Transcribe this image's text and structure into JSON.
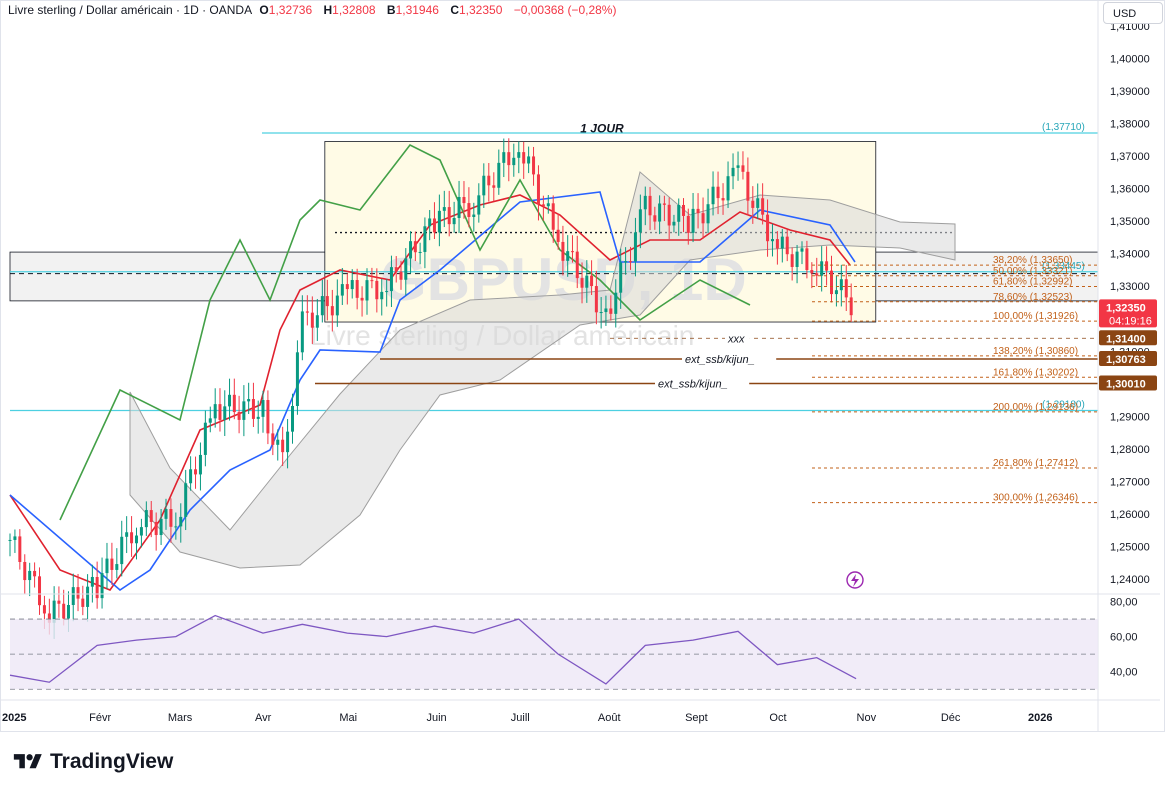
{
  "header": {
    "symbol": "Livre sterling / Dollar américain · 1D · OANDA",
    "o_label": "O",
    "o_value": "1,32736",
    "h_label": "H",
    "h_value": "1,32808",
    "b_label": "B",
    "b_value": "1,31946",
    "c_label": "C",
    "c_value": "1,32350",
    "change": "−0,00368 (−0,28%)"
  },
  "currency_button": "USD",
  "brand": "TradingView",
  "colors": {
    "up": "#089981",
    "down": "#f23645",
    "tenkan": "#e0222f",
    "kijun": "#2962ff",
    "chikou": "#43a047",
    "cloud": "#d9d9d9",
    "rsi": "#7e57c2",
    "fib": "#c2611a",
    "cyan": "#4dd0e1"
  },
  "chart_data": {
    "type": "candlestick",
    "title": "1 JOUR",
    "watermark_symbol": "GBPUSD, 1D",
    "watermark_name": "Livre sterling / Dollar américain",
    "y_axis": {
      "ticks": [
        "1,41000",
        "1,40000",
        "1,39000",
        "1,38000",
        "1,37000",
        "1,36000",
        "1,35000",
        "1,34000",
        "1,33000",
        "1,32000",
        "1,31000",
        "1,30000",
        "1,29000",
        "1,28000",
        "1,27000",
        "1,26000",
        "1,25000",
        "1,24000"
      ],
      "range": [
        1.236,
        1.418
      ]
    },
    "x_axis": {
      "ticks": [
        "2025",
        "Févr",
        "Mars",
        "Avr",
        "Mai",
        "Juin",
        "Juill",
        "Août",
        "Sept",
        "Oct",
        "Nov",
        "Déc",
        "2026"
      ]
    },
    "price_tags": [
      {
        "label": "1,32350",
        "sub": "04:19:16",
        "value": 1.3235,
        "color": "#f23645"
      },
      {
        "label": "1,31400",
        "value": 1.314,
        "color": "#8b4513"
      },
      {
        "label": "1,30763",
        "value": 1.30763,
        "color": "#8b4513"
      },
      {
        "label": "1,30010",
        "value": 1.3001,
        "color": "#8b4513"
      }
    ],
    "horizontal_levels": [
      {
        "label": "(1,37710)",
        "value": 1.3771,
        "style": "cyan"
      },
      {
        "label": "(1,33445)",
        "value": 1.33445,
        "style": "cyan"
      },
      {
        "label": "(1,29180)",
        "value": 1.2918,
        "style": "cyan"
      }
    ],
    "annotations": [
      {
        "label": "xxx",
        "value": 1.314
      },
      {
        "label": "ext_ssb/kijun_",
        "value": 1.30763
      },
      {
        "label": "ext_ssb/kijun_",
        "value": 1.3001
      }
    ],
    "fib_levels": [
      {
        "label": "38,20% (1,33650)",
        "value": 1.3365
      },
      {
        "label": "50,00% (1,33321)",
        "value": 1.33321
      },
      {
        "label": "61,80% (1,32992)",
        "value": 1.32992
      },
      {
        "label": "78,60% (1,32523)",
        "value": 1.32523
      },
      {
        "label": "100,00% (1,31926)",
        "value": 1.31926
      },
      {
        "label": "138,20% (1,30860)",
        "value": 1.3086
      },
      {
        "label": "161,80% (1,30202)",
        "value": 1.30202
      },
      {
        "label": "200,00% (1,29136)",
        "value": 1.29136
      },
      {
        "label": "261,80% (1,27412)",
        "value": 1.27412
      },
      {
        "label": "300,00% (1,26346)",
        "value": 1.26346
      }
    ],
    "range_box": {
      "top": 1.3745,
      "bottom": 1.319,
      "from": "2025-04-23",
      "to": "2025-11-05"
    },
    "close_series": [
      {
        "x": "2025-01-01",
        "y": 1.252
      },
      {
        "x": "2025-01-15",
        "y": 1.229
      },
      {
        "x": "2025-02-01",
        "y": 1.238
      },
      {
        "x": "2025-02-15",
        "y": 1.257
      },
      {
        "x": "2025-03-01",
        "y": 1.258
      },
      {
        "x": "2025-03-15",
        "y": 1.293
      },
      {
        "x": "2025-04-01",
        "y": 1.292
      },
      {
        "x": "2025-04-08",
        "y": 1.275
      },
      {
        "x": "2025-04-15",
        "y": 1.319
      },
      {
        "x": "2025-05-01",
        "y": 1.328
      },
      {
        "x": "2025-05-15",
        "y": 1.33
      },
      {
        "x": "2025-06-01",
        "y": 1.35
      },
      {
        "x": "2025-06-15",
        "y": 1.356
      },
      {
        "x": "2025-07-01",
        "y": 1.374
      },
      {
        "x": "2025-07-15",
        "y": 1.344
      },
      {
        "x": "2025-08-01",
        "y": 1.321
      },
      {
        "x": "2025-08-15",
        "y": 1.354
      },
      {
        "x": "2025-09-01",
        "y": 1.35
      },
      {
        "x": "2025-09-17",
        "y": 1.365
      },
      {
        "x": "2025-10-01",
        "y": 1.342
      },
      {
        "x": "2025-10-15",
        "y": 1.336
      },
      {
        "x": "2025-10-29",
        "y": 1.3235
      }
    ],
    "rsi": {
      "ticks": [
        "80,00",
        "60,00",
        "40,00"
      ],
      "upper": 70,
      "middle": 50,
      "lower": 30,
      "values": [
        {
          "x": "2025-01-01",
          "y": 38
        },
        {
          "x": "2025-01-15",
          "y": 34
        },
        {
          "x": "2025-02-01",
          "y": 55
        },
        {
          "x": "2025-02-15",
          "y": 58
        },
        {
          "x": "2025-03-01",
          "y": 60
        },
        {
          "x": "2025-03-15",
          "y": 72
        },
        {
          "x": "2025-04-01",
          "y": 62
        },
        {
          "x": "2025-04-15",
          "y": 67
        },
        {
          "x": "2025-05-01",
          "y": 62
        },
        {
          "x": "2025-05-15",
          "y": 60
        },
        {
          "x": "2025-06-01",
          "y": 66
        },
        {
          "x": "2025-06-15",
          "y": 62
        },
        {
          "x": "2025-07-01",
          "y": 70
        },
        {
          "x": "2025-07-15",
          "y": 50
        },
        {
          "x": "2025-08-01",
          "y": 33
        },
        {
          "x": "2025-08-15",
          "y": 55
        },
        {
          "x": "2025-09-01",
          "y": 58
        },
        {
          "x": "2025-09-17",
          "y": 63
        },
        {
          "x": "2025-10-01",
          "y": 44
        },
        {
          "x": "2025-10-15",
          "y": 48
        },
        {
          "x": "2025-10-29",
          "y": 36
        }
      ]
    }
  }
}
